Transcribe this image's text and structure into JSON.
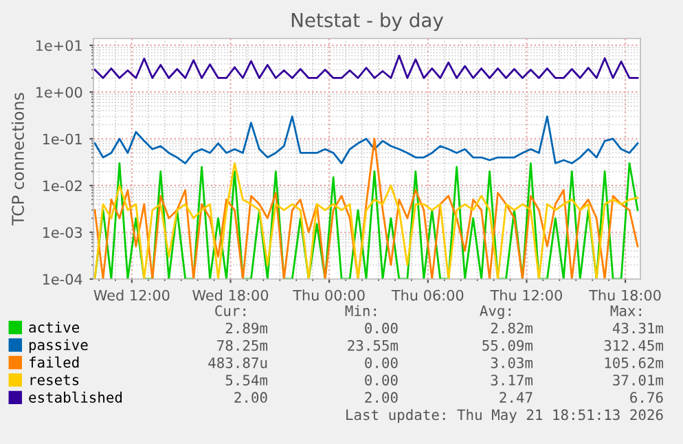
{
  "chart_data": {
    "type": "line",
    "title": "Netstat - by day",
    "ylabel": "TCP connections",
    "log": "y",
    "grid": true,
    "legend": "bottom left",
    "marker": "none",
    "line_style": "solid",
    "xlim": [
      "2026-05-20T09:40",
      "2026-05-21T18:55"
    ],
    "xticks": [
      {
        "value": "2026-05-20T12:00",
        "label": "Wed 12:00"
      },
      {
        "value": "2026-05-20T18:00",
        "label": "Wed 18:00"
      },
      {
        "value": "2026-05-21T00:00",
        "label": "Thu 00:00"
      },
      {
        "value": "2026-05-21T06:00",
        "label": "Thu 06:00"
      },
      {
        "value": "2026-05-21T12:00",
        "label": "Thu 12:00"
      },
      {
        "value": "2026-05-21T18:00",
        "label": "Thu 18:00"
      }
    ],
    "ylim": [
      0.0001,
      14
    ],
    "yticks": [
      {
        "value": 0.0001,
        "label": "1e-04"
      },
      {
        "value": 0.001,
        "label": "1e-03"
      },
      {
        "value": 0.01,
        "label": "1e-02"
      },
      {
        "value": 0.1,
        "label": "1e-01"
      },
      {
        "value": 1,
        "label": "1e+00"
      },
      {
        "value": 10,
        "label": "1e+01"
      }
    ],
    "x": [
      "2026-05-20T09:45",
      "2026-05-20T10:15",
      "2026-05-20T10:45",
      "2026-05-20T11:15",
      "2026-05-20T11:45",
      "2026-05-20T12:15",
      "2026-05-20T12:45",
      "2026-05-20T13:15",
      "2026-05-20T13:45",
      "2026-05-20T14:15",
      "2026-05-20T14:45",
      "2026-05-20T15:15",
      "2026-05-20T15:45",
      "2026-05-20T16:15",
      "2026-05-20T16:45",
      "2026-05-20T17:15",
      "2026-05-20T17:45",
      "2026-05-20T18:15",
      "2026-05-20T18:45",
      "2026-05-20T19:15",
      "2026-05-20T19:45",
      "2026-05-20T20:15",
      "2026-05-20T20:45",
      "2026-05-20T21:15",
      "2026-05-20T21:45",
      "2026-05-20T22:15",
      "2026-05-20T22:45",
      "2026-05-20T23:15",
      "2026-05-20T23:45",
      "2026-05-21T00:15",
      "2026-05-21T00:45",
      "2026-05-21T01:15",
      "2026-05-21T01:45",
      "2026-05-21T02:15",
      "2026-05-21T02:45",
      "2026-05-21T03:15",
      "2026-05-21T03:45",
      "2026-05-21T04:15",
      "2026-05-21T04:45",
      "2026-05-21T05:15",
      "2026-05-21T05:45",
      "2026-05-21T06:15",
      "2026-05-21T06:45",
      "2026-05-21T07:15",
      "2026-05-21T07:45",
      "2026-05-21T08:15",
      "2026-05-21T08:45",
      "2026-05-21T09:15",
      "2026-05-21T09:45",
      "2026-05-21T10:15",
      "2026-05-21T10:45",
      "2026-05-21T11:15",
      "2026-05-21T11:45",
      "2026-05-21T12:15",
      "2026-05-21T12:45",
      "2026-05-21T13:15",
      "2026-05-21T13:45",
      "2026-05-21T14:15",
      "2026-05-21T14:45",
      "2026-05-21T15:15",
      "2026-05-21T15:45",
      "2026-05-21T16:15",
      "2026-05-21T16:45",
      "2026-05-21T17:15",
      "2026-05-21T17:45",
      "2026-05-21T18:15",
      "2026-05-21T18:45"
    ],
    "series": [
      {
        "name": "active",
        "color": "#00cc00",
        "values": [
          0.0001,
          0.003,
          0.0001,
          0.03,
          0.0001,
          0.002,
          0.0001,
          0.0001,
          0.02,
          0.0001,
          0.003,
          0.0001,
          0.0001,
          0.025,
          0.0001,
          0.002,
          0.0001,
          0.02,
          0.0001,
          0.0001,
          0.003,
          0.0001,
          0.02,
          0.0001,
          0.0001,
          0.002,
          0.0001,
          0.0015,
          0.0001,
          0.015,
          0.0001,
          0.0001,
          0.003,
          0.0001,
          0.02,
          0.0001,
          0.002,
          0.0001,
          0.0001,
          0.02,
          0.0001,
          0.003,
          0.0001,
          0.0001,
          0.025,
          0.0001,
          0.002,
          0.0001,
          0.02,
          0.0001,
          0.0001,
          0.003,
          0.0001,
          0.03,
          0.0001,
          0.0001,
          0.002,
          0.0001,
          0.02,
          0.0001,
          0.003,
          0.0001,
          0.02,
          0.0001,
          0.0001,
          0.03,
          0.003
        ]
      },
      {
        "name": "passive",
        "color": "#0066b3",
        "values": [
          0.08,
          0.04,
          0.05,
          0.1,
          0.05,
          0.14,
          0.09,
          0.06,
          0.07,
          0.05,
          0.04,
          0.03,
          0.05,
          0.06,
          0.05,
          0.08,
          0.05,
          0.06,
          0.05,
          0.22,
          0.06,
          0.04,
          0.05,
          0.07,
          0.3,
          0.05,
          0.05,
          0.05,
          0.06,
          0.05,
          0.03,
          0.06,
          0.08,
          0.1,
          0.06,
          0.09,
          0.07,
          0.06,
          0.05,
          0.04,
          0.04,
          0.05,
          0.07,
          0.06,
          0.05,
          0.06,
          0.04,
          0.04,
          0.035,
          0.04,
          0.04,
          0.04,
          0.05,
          0.06,
          0.05,
          0.3,
          0.03,
          0.035,
          0.03,
          0.04,
          0.06,
          0.04,
          0.09,
          0.1,
          0.06,
          0.05,
          0.08
        ]
      },
      {
        "name": "failed",
        "color": "#ff8000",
        "values": [
          0.003,
          0.0001,
          0.005,
          0.002,
          0.008,
          0.0005,
          0.004,
          0.0001,
          0.006,
          0.002,
          0.003,
          0.008,
          0.0001,
          0.004,
          0.002,
          0.0003,
          0.005,
          0.003,
          0.0001,
          0.006,
          0.004,
          0.002,
          0.007,
          0.0001,
          0.003,
          0.005,
          0.001,
          0.004,
          0.0001,
          0.003,
          0.006,
          0.002,
          0.0001,
          0.004,
          0.1,
          0.003,
          0.0002,
          0.005,
          0.002,
          0.008,
          0.003,
          0.0001,
          0.004,
          0.006,
          0.002,
          0.0004,
          0.005,
          0.003,
          0.0001,
          0.007,
          0.004,
          0.002,
          0.0001,
          0.006,
          0.003,
          0.0005,
          0.004,
          0.008,
          0.0001,
          0.003,
          0.005,
          0.002,
          0.0001,
          0.006,
          0.004,
          0.003,
          0.0005
        ]
      },
      {
        "name": "resets",
        "color": "#ffcc00",
        "values": [
          0.0001,
          0.004,
          0.002,
          0.01,
          0.003,
          0.004,
          0.0001,
          0.003,
          0.004,
          0.0003,
          0.003,
          0.004,
          0.002,
          0.003,
          0.004,
          0.0001,
          0.003,
          0.03,
          0.005,
          0.004,
          0.003,
          0.0002,
          0.004,
          0.003,
          0.004,
          0.003,
          0.0001,
          0.004,
          0.003,
          0.004,
          0.003,
          0.004,
          0.0001,
          0.003,
          0.005,
          0.004,
          0.01,
          0.003,
          0.0002,
          0.004,
          0.004,
          0.003,
          0.004,
          0.0001,
          0.003,
          0.004,
          0.003,
          0.006,
          0.003,
          0.0001,
          0.004,
          0.003,
          0.004,
          0.003,
          0.0001,
          0.004,
          0.003,
          0.004,
          0.005,
          0.003,
          0.004,
          0.0001,
          0.004,
          0.005,
          0.004,
          0.005,
          0.0055
        ]
      },
      {
        "name": "established",
        "color": "#330099",
        "values": [
          3.0,
          2.0,
          3.2,
          2.0,
          2.9,
          2.0,
          5.2,
          2.0,
          3.8,
          2.0,
          3.1,
          2.0,
          4.8,
          2.0,
          3.9,
          2.0,
          2.0,
          3.4,
          2.0,
          4.6,
          2.0,
          3.8,
          2.0,
          2.9,
          2.0,
          3.1,
          2.0,
          2.0,
          3.0,
          2.0,
          2.0,
          2.9,
          2.0,
          3.3,
          2.0,
          2.8,
          2.0,
          6.0,
          2.0,
          5.0,
          2.0,
          3.2,
          2.0,
          4.3,
          2.0,
          3.6,
          2.0,
          3.2,
          2.0,
          3.2,
          2.0,
          3.1,
          2.0,
          3.0,
          2.0,
          3.2,
          2.0,
          2.0,
          3.1,
          2.0,
          3.3,
          2.0,
          5.3,
          2.0,
          4.5,
          2.0,
          2.0
        ]
      }
    ],
    "annotations": [
      "Cur:",
      "Min:",
      "Avg:",
      "Max:",
      "2.89m",
      "0.00",
      "2.82m",
      "43.31m",
      "78.25m",
      "23.55m",
      "55.09m",
      "312.45m",
      "483.87u",
      "0.00",
      "3.03m",
      "105.62m",
      "5.54m",
      "0.00",
      "3.17m",
      "37.01m",
      "2.00",
      "2.00",
      "2.47",
      "6.76",
      "Last update: Thu May 21 18:51:13 2026"
    ]
  }
}
